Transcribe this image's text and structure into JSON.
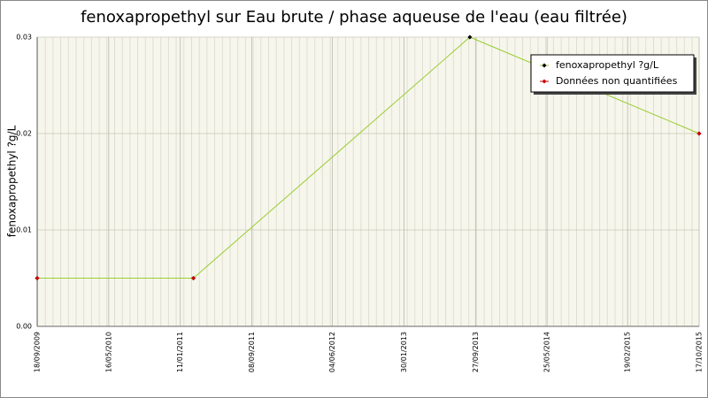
{
  "chart_data": {
    "type": "line",
    "title": "fenoxapropethyl sur Eau brute / phase aqueuse de l'eau (eau filtrée)",
    "y_label": "fenoxapropethyl ?g/L",
    "x": [
      "2009-09-18",
      "2011-02-24",
      "2013-09-08",
      "2015-10-17"
    ],
    "series": [
      {
        "name": "fenoxapropethyl ?g/L",
        "color": "#9acd32",
        "marker_color": "#000000",
        "values": [
          0.005,
          0.005,
          0.03,
          0.02
        ]
      },
      {
        "name": "Données non quantifiées",
        "color": "#cc0000",
        "values": [
          0.005,
          0.005,
          null,
          0.02
        ]
      }
    ],
    "xlim": [
      "2009-09-18",
      "2015-10-17"
    ],
    "xticks": [
      {
        "value": "2009-09-18",
        "label": "18/09/2009"
      },
      {
        "value": "2010-05-16",
        "label": "16/05/2010"
      },
      {
        "value": "2011-01-11",
        "label": "11/01/2011"
      },
      {
        "value": "2011-09-08",
        "label": "08/09/2011"
      },
      {
        "value": "2012-06-04",
        "label": "04/06/2012"
      },
      {
        "value": "2013-01-30",
        "label": "30/01/2013"
      },
      {
        "value": "2013-09-27",
        "label": "27/09/2013"
      },
      {
        "value": "2014-05-25",
        "label": "25/05/2014"
      },
      {
        "value": "2015-02-19",
        "label": "19/02/2015"
      },
      {
        "value": "2015-10-17",
        "label": "17/10/2015"
      }
    ],
    "ylim": [
      0,
      0.03
    ],
    "yticks": [
      {
        "value": 0,
        "label": "0.00"
      },
      0.01,
      0.02,
      0.03
    ],
    "grid": true,
    "legend": "top-right"
  }
}
